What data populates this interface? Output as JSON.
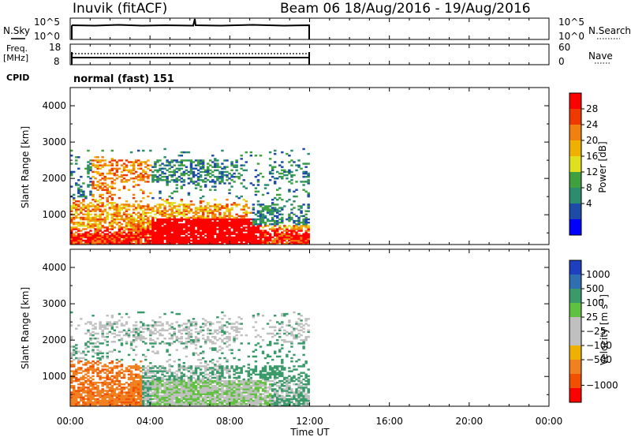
{
  "header": {
    "station": "Inuvik (fitACF)",
    "beam_dates": "Beam 06  18/Aug/2016 - 19/Aug/2016"
  },
  "nsky_panel": {
    "left_label": "N.Sky",
    "right_label": "N.Search",
    "left_ticks": [
      "10^5",
      "10^0"
    ],
    "right_ticks": [
      "10^5",
      "10^0"
    ]
  },
  "freq_panel": {
    "left_label_top": "Freq.",
    "left_label_bottom": "[MHz]",
    "right_label": "Nave",
    "left_ticks": [
      "18",
      "8"
    ],
    "right_ticks": [
      "60",
      "0"
    ]
  },
  "cpid": {
    "label": "CPID",
    "value": "normal (fast) 151"
  },
  "chart_data": [
    {
      "type": "heatmap",
      "name_label": "Power",
      "ylabel": "Slant Range [km]",
      "xlabel": "",
      "ylim": [
        180,
        4500
      ],
      "xlim_hours": [
        0,
        24
      ],
      "y_ticks": [
        "1000",
        "2000",
        "3000",
        "4000"
      ],
      "colorbar_label": "Power [dB]",
      "colorbar_ticks": [
        "28",
        "24",
        "20",
        "16",
        "12",
        "8",
        "4"
      ],
      "colorbar_colors": [
        "#ff0000",
        "#ee3a00",
        "#f08010",
        "#f0b000",
        "#e0e020",
        "#40a040",
        "#2b8c6e",
        "#1e4aa8",
        "#0000ff"
      ],
      "data_extent_hours": [
        0,
        12
      ]
    },
    {
      "type": "heatmap",
      "name_label": "Velocity",
      "ylabel": "Slant Range [km]",
      "xlabel": "Time UT",
      "ylim": [
        180,
        4500
      ],
      "xlim_hours": [
        0,
        24
      ],
      "y_ticks": [
        "1000",
        "2000",
        "3000",
        "4000"
      ],
      "x_ticks": [
        "00:00",
        "04:00",
        "08:00",
        "12:00",
        "16:00",
        "20:00",
        "00:00"
      ],
      "colorbar_label": "Velocity [m s",
      "colorbar_label_sup": "-1",
      "colorbar_label_end": "]",
      "colorbar_ticks": [
        "1000",
        "500",
        "100",
        "25",
        "−25",
        "−100",
        "−500",
        "−1000"
      ],
      "colorbar_colors": [
        "#1e40c0",
        "#2f6eb0",
        "#3a9a6a",
        "#60c040",
        "#c0c0c0",
        "#c0c0c0",
        "#f0b000",
        "#f08020",
        "#f05000",
        "#ff0000"
      ],
      "data_extent_hours": [
        0,
        12
      ]
    }
  ],
  "colors": {
    "axis": "#000000",
    "background": "#ffffff"
  }
}
